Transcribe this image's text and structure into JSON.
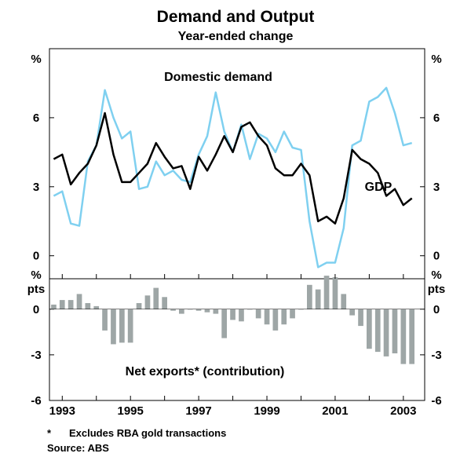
{
  "chart_data": [
    {
      "type": "line",
      "title": "Demand and Output",
      "subtitle": "Year-ended change",
      "ylabel_left": "%",
      "ylabel_right": "%",
      "ylim": [
        -1,
        9
      ],
      "yticks": [
        0,
        3,
        6
      ],
      "x_start": 1992.75,
      "x_step": 0.25,
      "grid": false,
      "series": [
        {
          "name": "Domestic demand",
          "color": "#7fd0f0",
          "values": [
            2.6,
            2.8,
            1.4,
            1.3,
            4.1,
            4.8,
            7.2,
            6.0,
            5.1,
            5.4,
            2.9,
            3.0,
            4.1,
            3.5,
            3.7,
            3.3,
            3.2,
            4.4,
            5.2,
            7.1,
            5.4,
            4.5,
            5.7,
            4.2,
            5.3,
            5.1,
            4.5,
            5.4,
            4.7,
            4.6,
            1.5,
            -0.5,
            -0.3,
            -0.3,
            1.2,
            4.8,
            5.0,
            6.7,
            6.9,
            7.3,
            6.2,
            4.8,
            4.9
          ]
        },
        {
          "name": "GDP",
          "color": "#000000",
          "values": [
            4.2,
            4.4,
            3.1,
            3.6,
            4.0,
            4.8,
            6.2,
            4.4,
            3.2,
            3.2,
            3.6,
            4.0,
            4.9,
            4.3,
            3.8,
            3.9,
            2.9,
            4.3,
            3.7,
            4.4,
            5.2,
            4.5,
            5.6,
            5.8,
            5.2,
            4.8,
            3.8,
            3.5,
            3.5,
            4.0,
            3.5,
            1.5,
            1.7,
            1.4,
            2.5,
            4.6,
            4.2,
            4.0,
            3.6,
            2.6,
            2.9,
            2.2,
            2.5
          ]
        }
      ]
    },
    {
      "type": "bar",
      "ylabel_left": "%\npts",
      "ylabel_right": "%\npts",
      "ylim": [
        -6,
        2
      ],
      "yticks": [
        0,
        -3,
        -6
      ],
      "x_start": 1992.75,
      "x_step": 0.25,
      "series": [
        {
          "name": "Net exports* (contribution)",
          "color": "#9ea6a6",
          "values": [
            0.3,
            0.6,
            0.6,
            1.0,
            0.4,
            0.2,
            -1.4,
            -2.3,
            -2.2,
            -2.2,
            0.4,
            0.9,
            1.4,
            0.8,
            -0.1,
            -0.3,
            0.0,
            -0.1,
            -0.2,
            -0.3,
            -1.9,
            -0.7,
            -0.8,
            0.0,
            -0.6,
            -1.0,
            -1.4,
            -1.0,
            -0.6,
            0.0,
            1.6,
            1.3,
            2.2,
            2.1,
            1.0,
            -0.4,
            -1.1,
            -2.6,
            -2.8,
            -3.1,
            -2.9,
            -3.6,
            -3.6
          ]
        }
      ]
    }
  ],
  "x_axis": {
    "labels": [
      "1993",
      "1995",
      "1997",
      "1999",
      "2001",
      "2003"
    ],
    "label_years": [
      1993,
      1995,
      1997,
      1999,
      2001,
      2003
    ],
    "range": [
      1992.625,
      2003.625
    ]
  },
  "notes": {
    "footnote_marker": "*",
    "footnote_text": "Excludes RBA gold transactions",
    "source": "Source: ABS"
  }
}
